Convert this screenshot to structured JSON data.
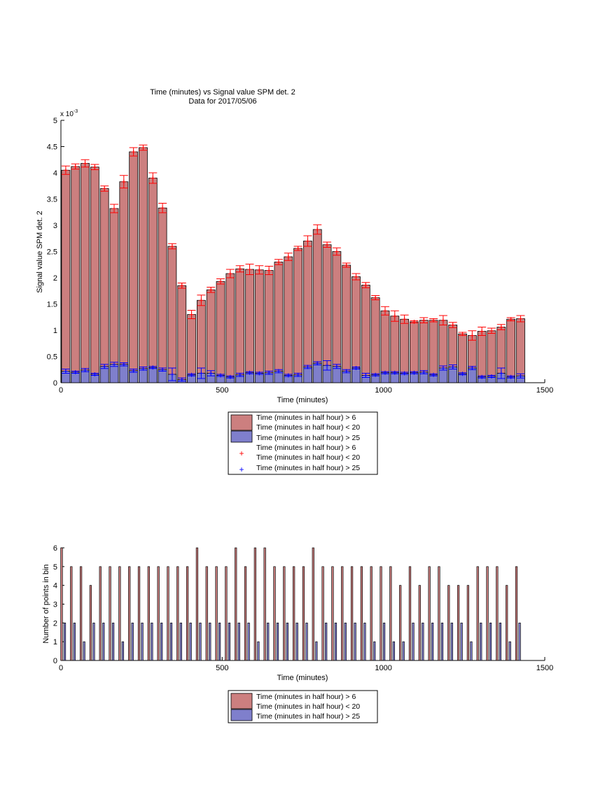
{
  "chart_data": [
    {
      "type": "bar",
      "title": "Time (minutes) vs Signal value SPM det. 2",
      "subtitle": "Data for 2017/05/06",
      "xlabel": "Time (minutes)",
      "ylabel": "Signal value SPM det. 2",
      "exponent_label": "x 10",
      "exponent_power": "-3",
      "xlim": [
        0,
        1500
      ],
      "ylim": [
        0,
        0.005
      ],
      "xticks": [
        0,
        500,
        1000,
        1500
      ],
      "yticks": [
        0,
        0.0005,
        0.001,
        0.0015,
        0.002,
        0.0025,
        0.003,
        0.0035,
        0.004,
        0.0045,
        0.005
      ],
      "ytick_labels": [
        "0",
        "0.5",
        "1",
        "1.5",
        "2",
        "2.5",
        "3",
        "3.5",
        "4",
        "4.5",
        "5"
      ],
      "grid": false,
      "legend_position": "below",
      "legend": [
        "Time (minutes in half hour) > 6",
        "Time (minutes in half hour) < 20",
        "Time (minutes in half hour) > 25",
        "Time (minutes in half hour) > 6",
        "Time (minutes in half hour) < 20",
        "Time (minutes in half hour) > 25"
      ],
      "x": [
        15,
        45,
        75,
        105,
        135,
        165,
        195,
        225,
        255,
        285,
        315,
        345,
        375,
        405,
        435,
        465,
        495,
        525,
        555,
        585,
        615,
        645,
        675,
        705,
        735,
        765,
        795,
        825,
        855,
        885,
        915,
        945,
        975,
        1005,
        1035,
        1065,
        1095,
        1125,
        1155,
        1185,
        1215,
        1245,
        1275,
        1305,
        1335,
        1365,
        1395,
        1425
      ],
      "series": [
        {
          "values": [
            0.00405,
            0.00412,
            0.00418,
            0.00411,
            0.0037,
            0.00332,
            0.00383,
            0.0044,
            0.00448,
            0.0039,
            0.00333,
            0.0026,
            0.00185,
            0.0013,
            0.00157,
            0.00177,
            0.00193,
            0.00208,
            0.00217,
            0.00216,
            0.00215,
            0.00214,
            0.0023,
            0.0024,
            0.00256,
            0.0027,
            0.00292,
            0.00263,
            0.0025,
            0.00224,
            0.00202,
            0.00186,
            0.00162,
            0.00137,
            0.00127,
            0.00121,
            0.00116,
            0.00119,
            0.00119,
            0.00119,
            0.0011,
            0.00093,
            0.0009,
            0.00098,
            0.00099,
            0.00106,
            0.00121,
            0.00122
          ],
          "errors": [
            8e-05,
            5e-05,
            7e-05,
            5e-05,
            5e-05,
            8e-05,
            0.00012,
            8e-05,
            5e-05,
            0.0001,
            9e-05,
            5e-05,
            5e-05,
            8e-05,
            0.0001,
            5e-05,
            5e-05,
            8e-05,
            6e-05,
            0.0001,
            8e-05,
            8e-05,
            5e-05,
            7e-05,
            4e-05,
            0.0001,
            9e-05,
            5e-05,
            7e-05,
            4e-05,
            6e-05,
            5e-05,
            4e-05,
            8e-05,
            0.0001,
            8e-05,
            2e-05,
            5e-05,
            3e-05,
            9e-05,
            5e-05,
            3e-05,
            9e-05,
            8e-05,
            5e-05,
            5e-05,
            3e-05,
            6e-05
          ]
        },
        {
          "values": [
            0.00022,
            0.0002,
            0.00024,
            0.00016,
            0.00031,
            0.00035,
            0.00035,
            0.00023,
            0.00027,
            0.00029,
            0.00025,
            0.00016,
            6e-05,
            0.00015,
            0.00018,
            0.00018,
            0.00014,
            0.00011,
            0.00015,
            0.00019,
            0.00018,
            0.00019,
            0.00022,
            0.00014,
            0.00015,
            0.0003,
            0.00037,
            0.00033,
            0.00031,
            0.00022,
            0.00028,
            0.00014,
            0.00015,
            0.00019,
            0.00019,
            0.00018,
            0.00019,
            0.0002,
            0.00015,
            0.00028,
            0.0003,
            0.00017,
            0.00028,
            0.00011,
            0.00012,
            0.00018,
            0.00011,
            0.00013
          ],
          "errors": [
            4e-05,
            2e-05,
            3e-05,
            2e-05,
            4e-05,
            4e-05,
            3e-05,
            3e-05,
            3e-05,
            2e-05,
            3e-05,
            0.00012,
            3e-05,
            2e-05,
            0.0001,
            5e-05,
            2e-05,
            2e-05,
            3e-05,
            2e-05,
            2e-05,
            3e-05,
            3e-05,
            2e-05,
            3e-05,
            3e-05,
            3e-05,
            9e-05,
            4e-05,
            3e-05,
            2e-05,
            4e-05,
            2e-05,
            2e-05,
            2e-05,
            2e-05,
            2e-05,
            3e-05,
            2e-05,
            4e-05,
            4e-05,
            2e-05,
            3e-05,
            2e-05,
            2e-05,
            0.0001,
            2e-05,
            4e-05
          ]
        }
      ]
    },
    {
      "type": "bar",
      "xlabel": "Time (minutes)",
      "ylabel": "Number of points in bin",
      "xlim": [
        0,
        1500
      ],
      "ylim": [
        0,
        6
      ],
      "xticks": [
        0,
        500,
        1000,
        1500
      ],
      "yticks": [
        0,
        1,
        2,
        3,
        4,
        5,
        6
      ],
      "grid": false,
      "legend_position": "below",
      "legend": [
        "Time (minutes in half hour) > 6",
        "Time (minutes in half hour) < 20",
        "Time (minutes in half hour) > 25"
      ],
      "x": [
        7,
        37,
        67,
        97,
        127,
        157,
        187,
        217,
        247,
        277,
        307,
        337,
        367,
        397,
        427,
        457,
        487,
        517,
        547,
        577,
        607,
        637,
        667,
        697,
        727,
        757,
        787,
        817,
        847,
        877,
        907,
        937,
        967,
        997,
        1027,
        1057,
        1087,
        1117,
        1147,
        1177,
        1207,
        1237,
        1267,
        1297,
        1327,
        1357,
        1387,
        1417
      ],
      "series": [
        {
          "values": [
            6,
            5,
            5,
            4,
            5,
            5,
            5,
            5,
            5,
            5,
            5,
            5,
            5,
            5,
            6,
            5,
            5,
            5,
            6,
            5,
            6,
            6,
            5,
            5,
            5,
            5,
            6,
            5,
            5,
            5,
            5,
            5,
            5,
            5,
            5,
            4,
            5,
            4,
            5,
            5,
            4,
            4,
            4,
            5,
            5,
            5,
            4,
            5
          ]
        },
        {
          "values": [
            2,
            2,
            1,
            2,
            2,
            2,
            1,
            2,
            2,
            2,
            2,
            2,
            2,
            2,
            2,
            2,
            2,
            2,
            2,
            2,
            1,
            2,
            2,
            2,
            2,
            2,
            1,
            2,
            2,
            2,
            2,
            2,
            1,
            2,
            1,
            1,
            2,
            2,
            2,
            2,
            2,
            2,
            1,
            2,
            2,
            2,
            1,
            2
          ]
        }
      ]
    }
  ],
  "colors": {
    "bar_red": "#cc7f7f",
    "bar_blue": "#7f7fcc",
    "marker_red": "#ff0000",
    "marker_blue": "#0000ff",
    "axis": "#000000"
  }
}
